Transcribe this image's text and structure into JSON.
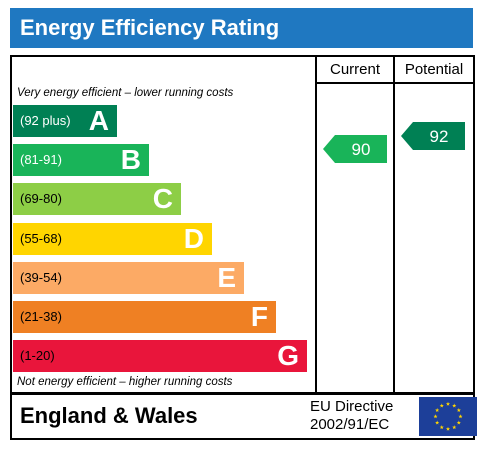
{
  "title": "Energy Efficiency Rating",
  "columns": {
    "current": "Current",
    "potential": "Potential"
  },
  "top_caption": "Very energy efficient – lower running costs",
  "bottom_caption": "Not energy efficient – higher running costs",
  "bands": [
    {
      "range": "(92 plus)",
      "letter": "A",
      "color": "#008054",
      "text_color": "#ffffff"
    },
    {
      "range": "(81-91)",
      "letter": "B",
      "color": "#19b459",
      "text_color": "#ffffff"
    },
    {
      "range": "(69-80)",
      "letter": "C",
      "color": "#8dce46",
      "text_color": "#000000"
    },
    {
      "range": "(55-68)",
      "letter": "D",
      "color": "#ffd500",
      "text_color": "#000000"
    },
    {
      "range": "(39-54)",
      "letter": "E",
      "color": "#fcaa65",
      "text_color": "#000000"
    },
    {
      "range": "(21-38)",
      "letter": "F",
      "color": "#ef8023",
      "text_color": "#000000"
    },
    {
      "range": "(1-20)",
      "letter": "G",
      "color": "#e9153b",
      "text_color": "#000000"
    }
  ],
  "current": {
    "value": "90",
    "color": "#19b459"
  },
  "potential": {
    "value": "92",
    "color": "#008054"
  },
  "footer": {
    "region": "England & Wales",
    "directive_line1": "EU Directive",
    "directive_line2": "2002/91/EC",
    "flag_color": "#1d3f99",
    "star_color": "#ffd500"
  }
}
